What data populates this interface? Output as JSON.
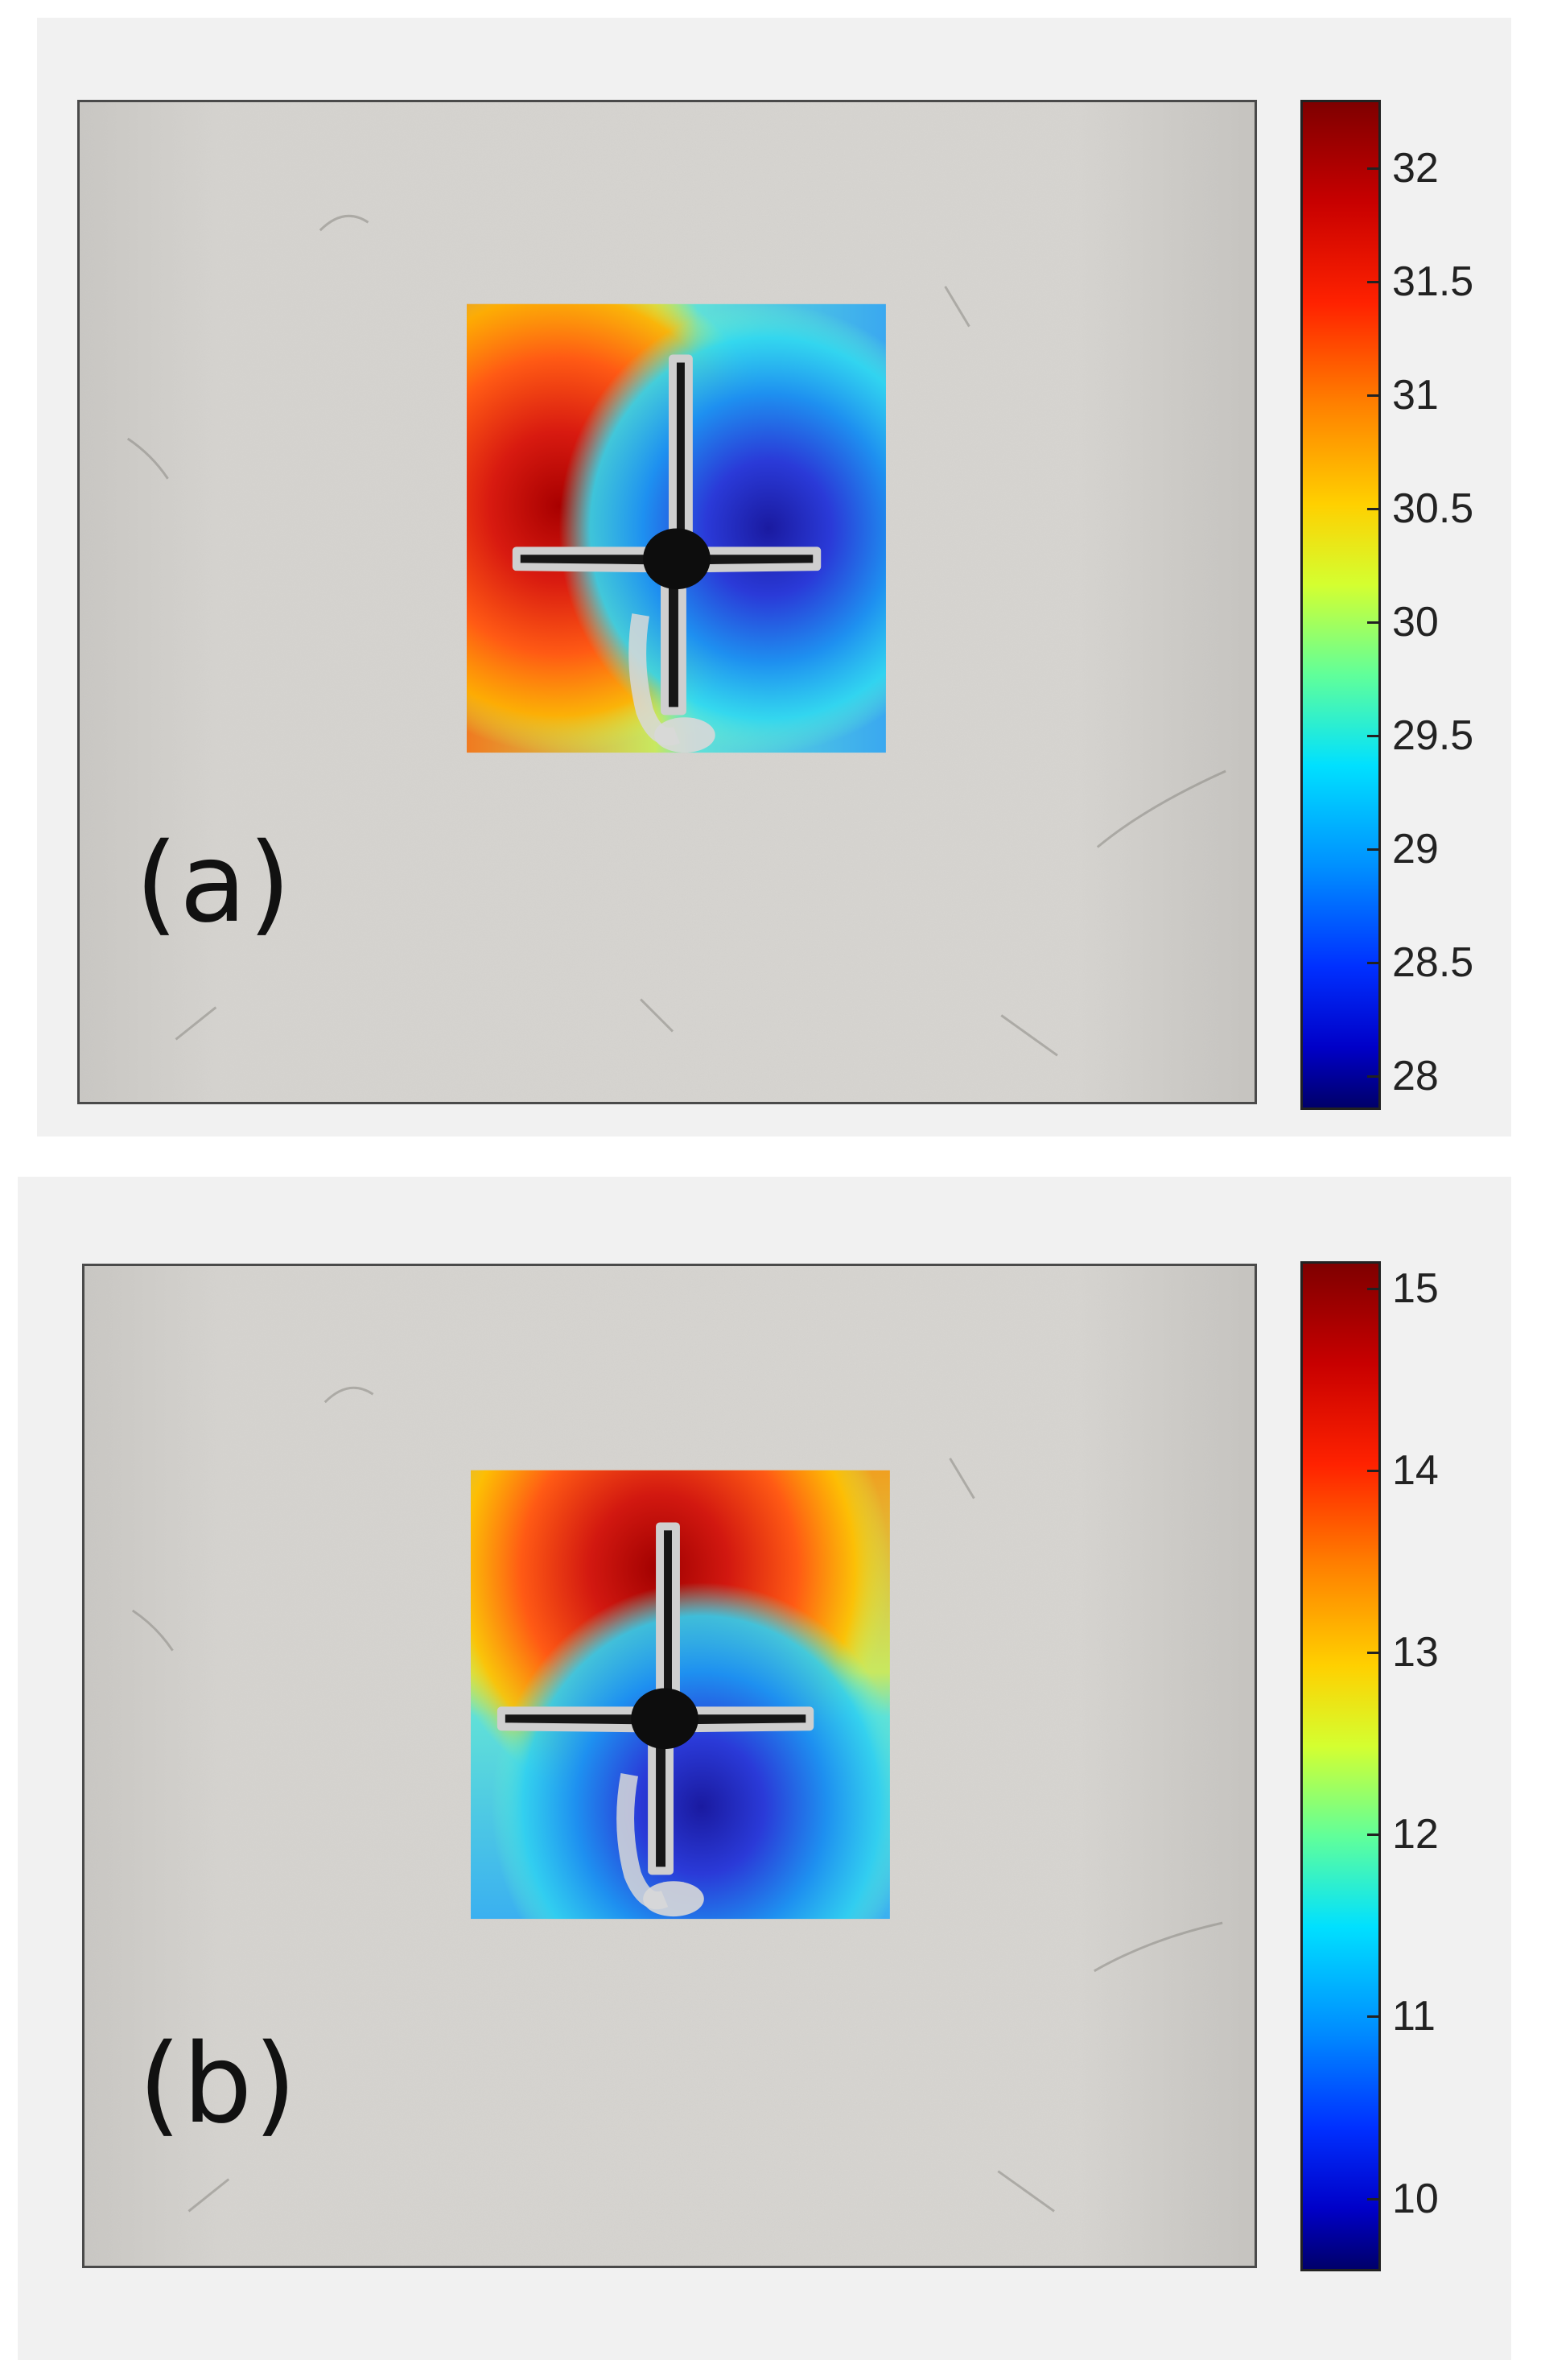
{
  "figure": {
    "panels": [
      {
        "id": "a",
        "label": "(a)",
        "colorbar": {
          "colormap": "jet",
          "min": 27.85,
          "max": 32.3,
          "ticks": [
            "32",
            "31.5",
            "31",
            "30.5",
            "30",
            "29.5",
            "29",
            "28.5",
            "28"
          ]
        },
        "heatmap_pattern": "hot region left of cross, cold region right of cross"
      },
      {
        "id": "b",
        "label": "(b)",
        "colorbar": {
          "colormap": "jet",
          "min": 9.6,
          "max": 15.15,
          "ticks": [
            "15",
            "14",
            "13",
            "12",
            "11",
            "10"
          ]
        },
        "heatmap_pattern": "hot region above cross, cold region below cross"
      }
    ]
  },
  "colors": {
    "background": "#f1f1f1",
    "wall": "#d2d0cc",
    "crack": "#1a1a1a"
  }
}
